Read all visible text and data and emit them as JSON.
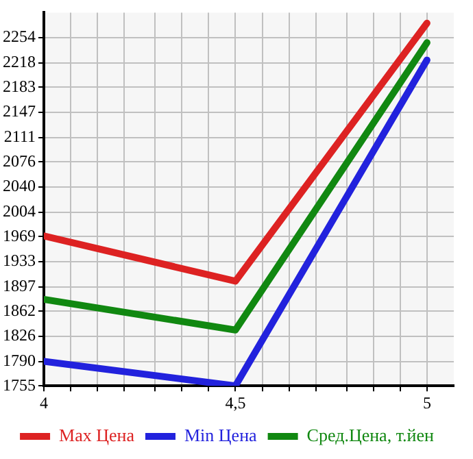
{
  "chart_data": {
    "type": "line",
    "x": [
      4,
      4.5,
      5
    ],
    "xlim": [
      4,
      5.07
    ],
    "ylim": [
      1755,
      2290
    ],
    "xticks": [
      4,
      {
        "value": 4.07,
        "label": null
      },
      {
        "value": 4.14,
        "label": null
      },
      {
        "value": 4.21,
        "label": null
      },
      {
        "value": 4.29,
        "label": null
      },
      {
        "value": 4.36,
        "label": null
      },
      {
        "value": 4.43,
        "label": null
      },
      {
        "value": 4.5,
        "label": "4,5"
      },
      {
        "value": 4.57,
        "label": null
      },
      {
        "value": 4.64,
        "label": null
      },
      {
        "value": 4.71,
        "label": null
      },
      {
        "value": 4.79,
        "label": null
      },
      {
        "value": 4.86,
        "label": null
      },
      {
        "value": 4.93,
        "label": null
      },
      5
    ],
    "yticks": [
      1755,
      1790,
      1826,
      1862,
      1897,
      1933,
      1969,
      2004,
      2040,
      2076,
      2111,
      2147,
      2183,
      2218,
      2254
    ],
    "series": [
      {
        "name": "Max Цена",
        "color": "#dd2222",
        "values": [
          1970,
          1905,
          2275
        ]
      },
      {
        "name": "Min Цена",
        "color": "#2222dd",
        "values": [
          1790,
          1755,
          2222
        ]
      },
      {
        "name": "Сред.Цена, т.йен",
        "color": "#118811",
        "values": [
          1879,
          1835,
          2247
        ]
      }
    ],
    "grid": true,
    "legend": "bottom",
    "marker": "none",
    "line_style": "solid"
  }
}
